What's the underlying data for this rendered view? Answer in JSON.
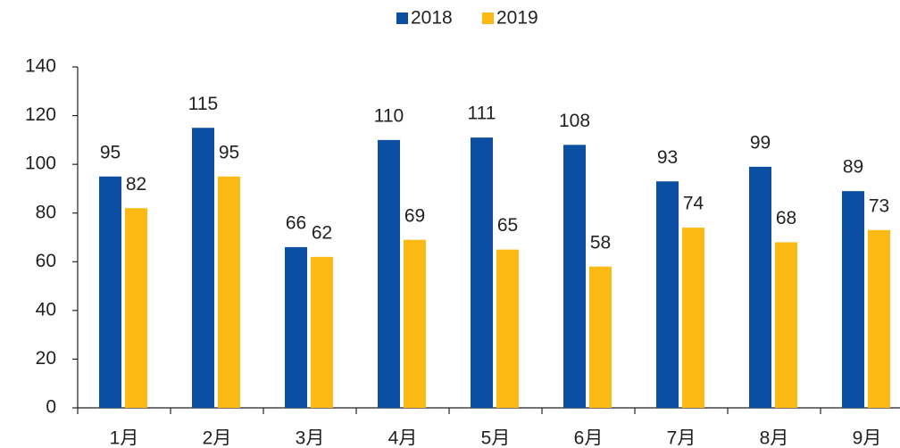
{
  "chart_data": {
    "type": "bar",
    "categories": [
      "1月",
      "2月",
      "3月",
      "4月",
      "5月",
      "6月",
      "7月",
      "8月",
      "9月"
    ],
    "series": [
      {
        "name": "2018",
        "color": "#0b4ea2",
        "values": [
          95,
          115,
          66,
          110,
          111,
          108,
          93,
          99,
          89
        ]
      },
      {
        "name": "2019",
        "color": "#fdb913",
        "values": [
          82,
          95,
          62,
          69,
          65,
          58,
          74,
          68,
          73
        ]
      }
    ],
    "ylim": [
      0,
      140
    ],
    "yticks": [
      0,
      20,
      40,
      60,
      80,
      100,
      120,
      140
    ],
    "legend": "top"
  }
}
